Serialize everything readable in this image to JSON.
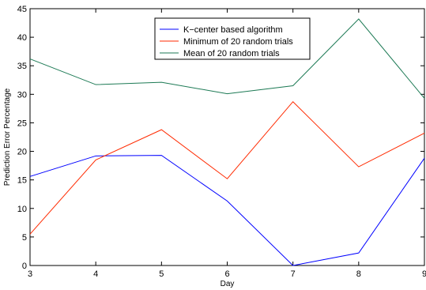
{
  "chart_data": {
    "type": "line",
    "xlabel": "Day",
    "ylabel": "Prediction Error Percentage",
    "x": [
      3,
      4,
      5,
      6,
      7,
      8,
      9
    ],
    "xlim": [
      3,
      9
    ],
    "ylim": [
      0,
      45
    ],
    "xticks": [
      "3",
      "4",
      "5",
      "6",
      "7",
      "8",
      "9"
    ],
    "yticks": [
      "0",
      "5",
      "10",
      "15",
      "20",
      "25",
      "30",
      "35",
      "40",
      "45"
    ],
    "grid": false,
    "legend_position": "top-center",
    "series": [
      {
        "name": "K−center based algorithm",
        "color": "#0000ff",
        "values": [
          15.6,
          19.2,
          19.3,
          11.3,
          0.0,
          2.2,
          18.8
        ]
      },
      {
        "name": "Minimum of 20 random trials",
        "color": "#ff2a00",
        "values": [
          5.5,
          18.5,
          23.8,
          15.2,
          28.7,
          17.3,
          23.2
        ]
      },
      {
        "name": "Mean of 20 random trials",
        "color": "#1d7a55",
        "values": [
          36.2,
          31.7,
          32.1,
          30.1,
          31.5,
          43.2,
          29.3
        ]
      }
    ]
  }
}
